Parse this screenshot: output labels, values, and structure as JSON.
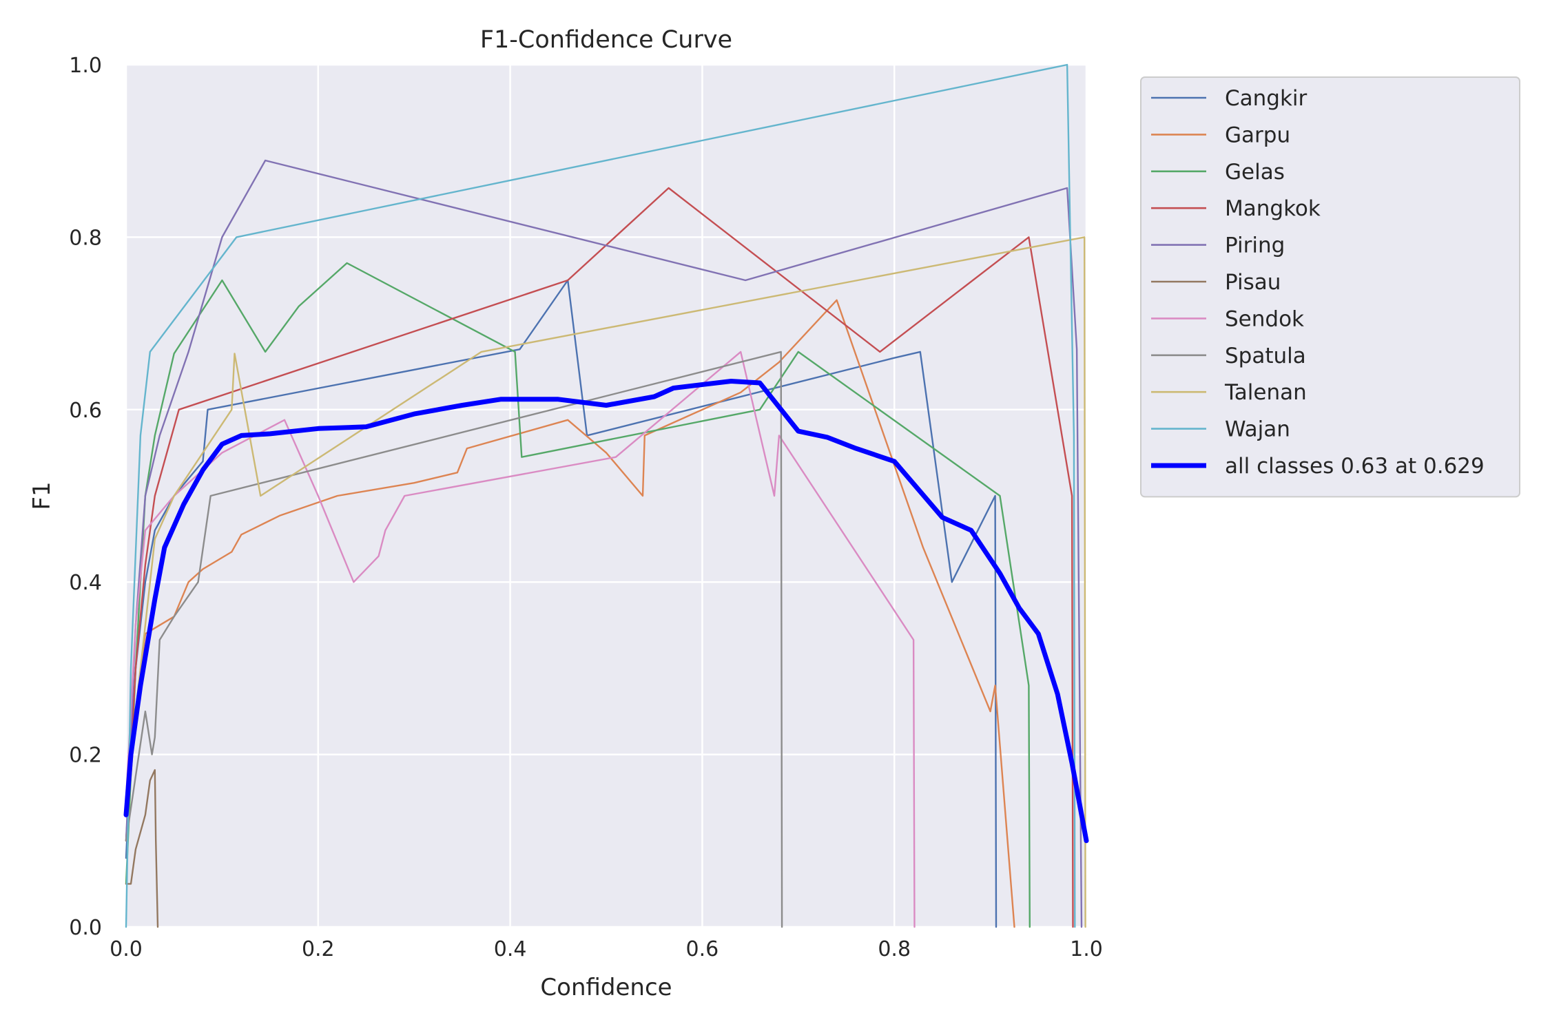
{
  "chart_data": {
    "type": "line",
    "title": "F1-Confidence Curve",
    "xlabel": "Confidence",
    "ylabel": "F1",
    "xlim": [
      0,
      1
    ],
    "ylim": [
      0,
      1
    ],
    "xticks": [
      "0.0",
      "0.2",
      "0.4",
      "0.6",
      "0.8",
      "1.0"
    ],
    "yticks": [
      "0.0",
      "0.2",
      "0.4",
      "0.6",
      "0.8",
      "1.0"
    ],
    "grid": true,
    "legend_position": "outside-upper-right",
    "series": [
      {
        "name": "Cangkir",
        "color": "#4c72b0",
        "points": [
          [
            0,
            0.08
          ],
          [
            0.005,
            0.2
          ],
          [
            0.01,
            0.3
          ],
          [
            0.02,
            0.4
          ],
          [
            0.03,
            0.46
          ],
          [
            0.05,
            0.5
          ],
          [
            0.08,
            0.54
          ],
          [
            0.085,
            0.6
          ],
          [
            0.41,
            0.67
          ],
          [
            0.46,
            0.75
          ],
          [
            0.48,
            0.57
          ],
          [
            0.8,
            0.66
          ],
          [
            0.827,
            0.667
          ],
          [
            0.86,
            0.4
          ],
          [
            0.905,
            0.5
          ],
          [
            0.906,
            0.0
          ]
        ]
      },
      {
        "name": "Garpu",
        "color": "#dd8452",
        "points": [
          [
            0,
            0.1
          ],
          [
            0.01,
            0.25
          ],
          [
            0.02,
            0.34
          ],
          [
            0.05,
            0.36
          ],
          [
            0.065,
            0.4
          ],
          [
            0.08,
            0.415
          ],
          [
            0.11,
            0.435
          ],
          [
            0.12,
            0.455
          ],
          [
            0.16,
            0.477
          ],
          [
            0.22,
            0.5
          ],
          [
            0.3,
            0.515
          ],
          [
            0.345,
            0.527
          ],
          [
            0.355,
            0.555
          ],
          [
            0.46,
            0.588
          ],
          [
            0.5,
            0.55
          ],
          [
            0.538,
            0.5
          ],
          [
            0.54,
            0.57
          ],
          [
            0.64,
            0.62
          ],
          [
            0.68,
            0.655
          ],
          [
            0.74,
            0.727
          ],
          [
            0.83,
            0.44
          ],
          [
            0.9,
            0.25
          ],
          [
            0.905,
            0.28
          ],
          [
            0.925,
            0.0
          ]
        ]
      },
      {
        "name": "Gelas",
        "color": "#55a868",
        "points": [
          [
            0,
            0.05
          ],
          [
            0.01,
            0.3
          ],
          [
            0.02,
            0.5
          ],
          [
            0.03,
            0.57
          ],
          [
            0.05,
            0.665
          ],
          [
            0.1,
            0.75
          ],
          [
            0.145,
            0.667
          ],
          [
            0.18,
            0.72
          ],
          [
            0.23,
            0.77
          ],
          [
            0.405,
            0.667
          ],
          [
            0.412,
            0.545
          ],
          [
            0.66,
            0.6
          ],
          [
            0.7,
            0.667
          ],
          [
            0.91,
            0.5
          ],
          [
            0.94,
            0.28
          ],
          [
            0.941,
            0.0
          ]
        ]
      },
      {
        "name": "Mangkok",
        "color": "#c44e52",
        "points": [
          [
            0,
            0.1
          ],
          [
            0.01,
            0.3
          ],
          [
            0.02,
            0.42
          ],
          [
            0.03,
            0.5
          ],
          [
            0.055,
            0.6
          ],
          [
            0.46,
            0.75
          ],
          [
            0.565,
            0.857
          ],
          [
            0.785,
            0.667
          ],
          [
            0.94,
            0.8
          ],
          [
            0.985,
            0.5
          ],
          [
            0.986,
            0.0
          ]
        ]
      },
      {
        "name": "Piring",
        "color": "#8172b3",
        "points": [
          [
            0,
            0.1
          ],
          [
            0.01,
            0.35
          ],
          [
            0.02,
            0.5
          ],
          [
            0.035,
            0.57
          ],
          [
            0.065,
            0.667
          ],
          [
            0.1,
            0.8
          ],
          [
            0.145,
            0.889
          ],
          [
            0.645,
            0.75
          ],
          [
            0.98,
            0.857
          ],
          [
            0.99,
            0.67
          ],
          [
            0.995,
            0.0
          ]
        ]
      },
      {
        "name": "Pisau",
        "color": "#937860",
        "points": [
          [
            0,
            0.05
          ],
          [
            0.005,
            0.05
          ],
          [
            0.01,
            0.09
          ],
          [
            0.015,
            0.11
          ],
          [
            0.02,
            0.13
          ],
          [
            0.025,
            0.17
          ],
          [
            0.03,
            0.182
          ],
          [
            0.031,
            0.1
          ],
          [
            0.033,
            0.0
          ]
        ]
      },
      {
        "name": "Sendok",
        "color": "#da8bc3",
        "points": [
          [
            0,
            0.15
          ],
          [
            0.01,
            0.35
          ],
          [
            0.02,
            0.46
          ],
          [
            0.05,
            0.5
          ],
          [
            0.1,
            0.55
          ],
          [
            0.165,
            0.588
          ],
          [
            0.2,
            0.5
          ],
          [
            0.237,
            0.4
          ],
          [
            0.263,
            0.43
          ],
          [
            0.27,
            0.46
          ],
          [
            0.29,
            0.5
          ],
          [
            0.51,
            0.545
          ],
          [
            0.64,
            0.667
          ],
          [
            0.675,
            0.5
          ],
          [
            0.68,
            0.57
          ],
          [
            0.82,
            0.333
          ],
          [
            0.821,
            0.0
          ]
        ]
      },
      {
        "name": "Spatula",
        "color": "#8c8c8c",
        "points": [
          [
            0,
            0.1
          ],
          [
            0.02,
            0.25
          ],
          [
            0.027,
            0.2
          ],
          [
            0.03,
            0.22
          ],
          [
            0.035,
            0.333
          ],
          [
            0.05,
            0.36
          ],
          [
            0.075,
            0.4
          ],
          [
            0.088,
            0.5
          ],
          [
            0.682,
            0.667
          ],
          [
            0.683,
            0.0
          ]
        ]
      },
      {
        "name": "Talenan",
        "color": "#ccb974",
        "points": [
          [
            0,
            0.15
          ],
          [
            0.02,
            0.35
          ],
          [
            0.03,
            0.45
          ],
          [
            0.05,
            0.5
          ],
          [
            0.11,
            0.6
          ],
          [
            0.113,
            0.665
          ],
          [
            0.14,
            0.5
          ],
          [
            0.37,
            0.667
          ],
          [
            0.998,
            0.8
          ],
          [
            0.999,
            0.0
          ]
        ]
      },
      {
        "name": "Wajan",
        "color": "#64b5cd",
        "points": [
          [
            0,
            0.0
          ],
          [
            0.005,
            0.3
          ],
          [
            0.015,
            0.57
          ],
          [
            0.025,
            0.667
          ],
          [
            0.115,
            0.8
          ],
          [
            0.98,
            1.0
          ],
          [
            0.987,
            0.57
          ],
          [
            0.988,
            0.0
          ]
        ]
      },
      {
        "name": "all classes 0.63 at 0.629",
        "color": "#0000ff",
        "bold": true,
        "points": [
          [
            0,
            0.13
          ],
          [
            0.005,
            0.2
          ],
          [
            0.015,
            0.28
          ],
          [
            0.03,
            0.38
          ],
          [
            0.04,
            0.44
          ],
          [
            0.06,
            0.49
          ],
          [
            0.08,
            0.53
          ],
          [
            0.1,
            0.56
          ],
          [
            0.12,
            0.57
          ],
          [
            0.15,
            0.572
          ],
          [
            0.2,
            0.578
          ],
          [
            0.25,
            0.58
          ],
          [
            0.3,
            0.595
          ],
          [
            0.35,
            0.605
          ],
          [
            0.39,
            0.612
          ],
          [
            0.45,
            0.612
          ],
          [
            0.5,
            0.605
          ],
          [
            0.55,
            0.615
          ],
          [
            0.57,
            0.625
          ],
          [
            0.63,
            0.633
          ],
          [
            0.66,
            0.631
          ],
          [
            0.7,
            0.575
          ],
          [
            0.73,
            0.568
          ],
          [
            0.76,
            0.555
          ],
          [
            0.8,
            0.54
          ],
          [
            0.85,
            0.475
          ],
          [
            0.88,
            0.46
          ],
          [
            0.91,
            0.41
          ],
          [
            0.93,
            0.37
          ],
          [
            0.95,
            0.34
          ],
          [
            0.97,
            0.27
          ],
          [
            0.985,
            0.19
          ],
          [
            1.0,
            0.1
          ]
        ]
      }
    ]
  }
}
